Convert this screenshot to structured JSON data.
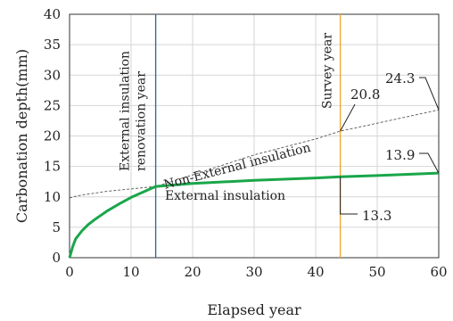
{
  "chart_data": {
    "type": "line",
    "xlabel": "Elapsed year",
    "ylabel": "Carbonation depth(mm)",
    "xlim": [
      0,
      60
    ],
    "ylim": [
      0,
      40
    ],
    "xticks": [
      0,
      10,
      20,
      30,
      40,
      50,
      60
    ],
    "yticks": [
      0,
      5,
      10,
      15,
      20,
      25,
      30,
      35,
      40
    ],
    "grid": true,
    "series": [
      {
        "name": "Non-External insulation",
        "style": "dashed",
        "color": "#555555",
        "x": [
          0,
          1,
          2,
          4,
          6,
          8,
          10,
          12,
          14,
          20,
          30,
          40,
          44,
          50,
          60
        ],
        "y": [
          9.8,
          10.1,
          10.3,
          10.6,
          10.9,
          11.1,
          11.3,
          11.5,
          11.7,
          13.6,
          16.9,
          19.5,
          20.8,
          22.1,
          24.3
        ]
      },
      {
        "name": "External insulation",
        "style": "solid",
        "color": "#1aa64a",
        "x": [
          0,
          0.5,
          1,
          2,
          3,
          4,
          6,
          8,
          10,
          12,
          14,
          20,
          30,
          40,
          44,
          50,
          60
        ],
        "y": [
          0,
          1.8,
          3.1,
          4.4,
          5.4,
          6.2,
          7.6,
          8.8,
          9.9,
          10.8,
          11.7,
          12.2,
          12.7,
          13.1,
          13.3,
          13.5,
          13.9
        ]
      }
    ],
    "reference_lines": [
      {
        "label": "External insulation renovation year",
        "x": 14,
        "color": "#2c6fa8"
      },
      {
        "label": "Survey year",
        "x": 44,
        "color": "#f0a830"
      }
    ],
    "annotations": [
      {
        "text": "Non-External insulation",
        "series": "Non-External insulation"
      },
      {
        "text": "External insulation",
        "series": "External insulation"
      }
    ],
    "value_labels": [
      {
        "text": "24.3",
        "x": 60,
        "y": 24.3
      },
      {
        "text": "20.8",
        "x": 44,
        "y": 20.8
      },
      {
        "text": "13.9",
        "x": 60,
        "y": 13.9
      },
      {
        "text": "13.3",
        "x": 44,
        "y": 13.3
      }
    ]
  }
}
